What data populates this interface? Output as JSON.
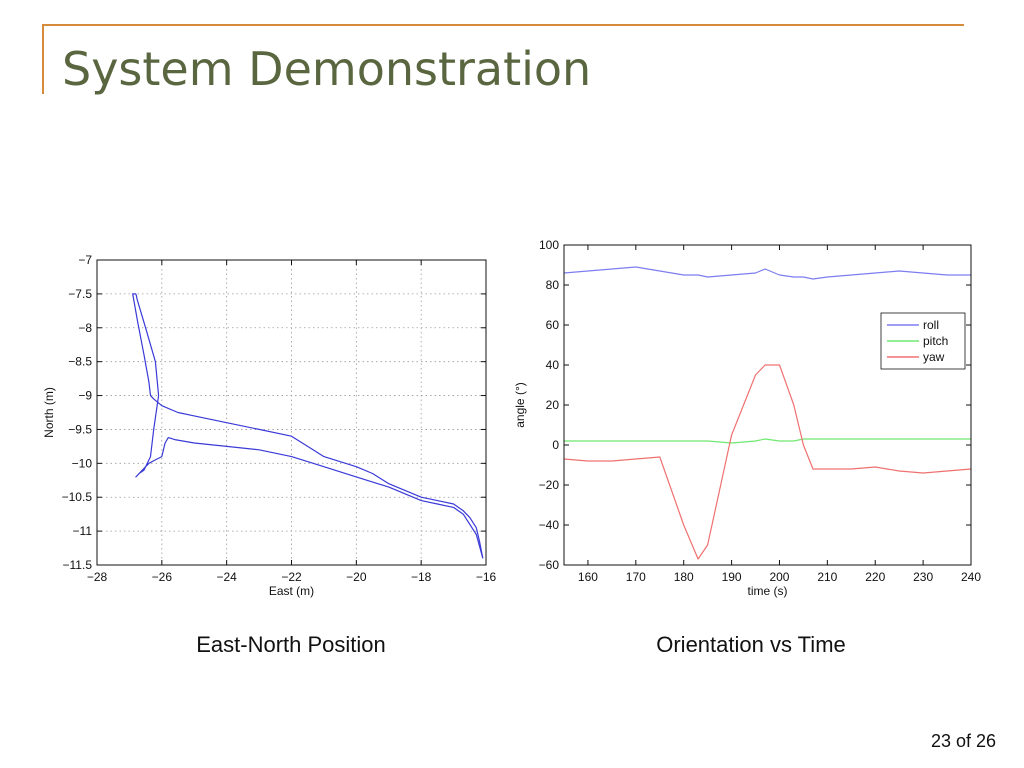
{
  "slide": {
    "title": "System Demonstration",
    "page_number": "23 of 26",
    "colors": {
      "title": "#5a6640",
      "accent": "#d58a3c"
    }
  },
  "captions": {
    "left": "East-North Position",
    "right": "Orientation vs Time"
  },
  "chart_data": [
    {
      "type": "line",
      "caption": "East-North Position",
      "xlabel": "East (m)",
      "ylabel": "North (m)",
      "xlim": [
        -28,
        -16
      ],
      "ylim": [
        -11.5,
        -7
      ],
      "xticks": [
        -28,
        -26,
        -24,
        -22,
        -20,
        -18,
        -16
      ],
      "yticks": [
        -11.5,
        -11,
        -10.5,
        -10,
        -9.5,
        -9,
        -8.5,
        -8,
        -7.5,
        -7
      ],
      "grid": true,
      "series": [
        {
          "color": "#3a3ad8",
          "x": [
            -26.8,
            -26.9,
            -26.75,
            -26.55,
            -26.4,
            -26.35,
            -26.25,
            -26.0,
            -25.5,
            -25.0,
            -24.5,
            -24.0,
            -23.0,
            -22.0,
            -21.5,
            -21.0,
            -20.0,
            -19.5,
            -19.0,
            -18.5,
            -18.0,
            -17.5,
            -17.0,
            -16.7,
            -16.5,
            -16.3,
            -16.2,
            -16.1
          ],
          "y": [
            -7.5,
            -7.5,
            -7.9,
            -8.4,
            -8.8,
            -9.0,
            -9.05,
            -9.15,
            -9.25,
            -9.3,
            -9.35,
            -9.4,
            -9.5,
            -9.6,
            -9.75,
            -9.9,
            -10.05,
            -10.15,
            -10.3,
            -10.4,
            -10.5,
            -10.55,
            -10.6,
            -10.7,
            -10.8,
            -10.95,
            -11.15,
            -11.4
          ]
        },
        {
          "color": "#3a3ad8",
          "x": [
            -16.1,
            -16.3,
            -16.7,
            -17.0,
            -17.5,
            -18.0,
            -18.5,
            -19.0,
            -20.0,
            -21.0,
            -22.0,
            -23.0,
            -24.0,
            -25.0,
            -25.6,
            -25.8,
            -25.9,
            -26.0,
            -26.2,
            -26.4,
            -26.6,
            -26.8,
            -26.7,
            -26.55,
            -26.35,
            -26.25,
            -26.1,
            -26.2,
            -26.5,
            -26.75,
            -26.8
          ],
          "y": [
            -11.4,
            -11.05,
            -10.75,
            -10.65,
            -10.6,
            -10.55,
            -10.45,
            -10.35,
            -10.2,
            -10.05,
            -9.9,
            -9.8,
            -9.75,
            -9.7,
            -9.65,
            -9.62,
            -9.7,
            -9.9,
            -9.95,
            -10.0,
            -10.1,
            -10.2,
            -10.15,
            -10.1,
            -9.9,
            -9.5,
            -9.0,
            -8.5,
            -8.0,
            -7.6,
            -7.5
          ]
        }
      ]
    },
    {
      "type": "line",
      "caption": "Orientation vs Time",
      "xlabel": "time (s)",
      "ylabel": "angle (°)",
      "xlim": [
        155,
        240
      ],
      "ylim": [
        -60,
        100
      ],
      "xticks": [
        160,
        170,
        180,
        190,
        200,
        210,
        220,
        230,
        240
      ],
      "yticks": [
        -60,
        -40,
        -20,
        0,
        20,
        40,
        60,
        80,
        100
      ],
      "grid": false,
      "legend_position": "right",
      "x": [
        155,
        160,
        165,
        170,
        175,
        180,
        183,
        185,
        190,
        195,
        197,
        200,
        203,
        205,
        207,
        210,
        215,
        220,
        225,
        230,
        235,
        240
      ],
      "series": [
        {
          "name": "roll",
          "color": "#7d7df0",
          "values": [
            86,
            87,
            88,
            89,
            87,
            85,
            85,
            84,
            85,
            86,
            88,
            85,
            84,
            84,
            83,
            84,
            85,
            86,
            87,
            86,
            85,
            85
          ]
        },
        {
          "name": "pitch",
          "color": "#70e870",
          "values": [
            2,
            2,
            2,
            2,
            2,
            2,
            2,
            2,
            1,
            2,
            3,
            2,
            2,
            3,
            3,
            3,
            3,
            3,
            3,
            3,
            3,
            3
          ]
        },
        {
          "name": "yaw",
          "color": "#f07070",
          "values": [
            -7,
            -8,
            -8,
            -7,
            -6,
            -40,
            -57,
            -50,
            5,
            35,
            40,
            40,
            20,
            0,
            -12,
            -12,
            -12,
            -11,
            -13,
            -14,
            -13,
            -12
          ]
        }
      ]
    }
  ]
}
